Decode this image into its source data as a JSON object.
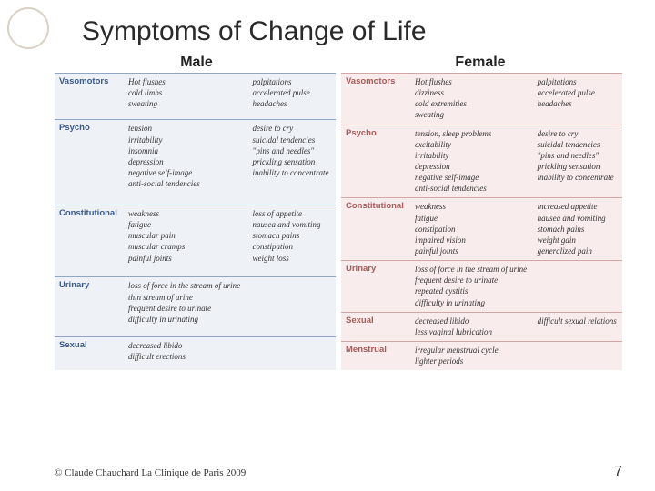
{
  "title": "Symptoms of Change of Life",
  "headers": {
    "male": "Male",
    "female": "Female"
  },
  "male": {
    "categories": [
      "Vasomotors",
      "Psycho",
      "Constitutional",
      "Urinary",
      "Sexual"
    ],
    "rows": [
      {
        "c1": [
          "Hot flushes",
          "cold limbs",
          "sweating"
        ],
        "c2": [
          "palpitations",
          "accelerated pulse",
          "headaches"
        ]
      },
      {
        "c1": [
          "tension",
          "irritability",
          "insomnia",
          "depression",
          "negative self-image",
          "anti-social tendencies"
        ],
        "c2": [
          "desire to cry",
          "suicidal tendencies",
          "\"pins and needles\"",
          "prickling sensation",
          "inability to concentrate"
        ]
      },
      {
        "c1": [
          "weakness",
          "fatigue",
          "muscular pain",
          "muscular cramps",
          "painful joints"
        ],
        "c2": [
          "loss of appetite",
          "nausea and vomiting",
          "stomach pains",
          "constipation",
          "weight loss"
        ]
      },
      {
        "c1": [
          "loss of force in the stream of urine",
          "thin stream of urine",
          "frequent desire to urinate",
          "difficulty in urinating"
        ],
        "c2": []
      },
      {
        "c1": [
          "decreased libido",
          "difficult erections"
        ],
        "c2": []
      }
    ]
  },
  "female": {
    "categories": [
      "Vasomotors",
      "Psycho",
      "Constitutional",
      "Urinary",
      "Sexual",
      "Menstrual"
    ],
    "rows": [
      {
        "c1": [
          "Hot flushes",
          "dizziness",
          "cold extremities",
          "sweating"
        ],
        "c2": [
          "palpitations",
          "accelerated pulse",
          "headaches"
        ]
      },
      {
        "c1": [
          "tension, sleep problems",
          "excitability",
          "irritability",
          "depression",
          "negative self-image",
          "anti-social tendencies"
        ],
        "c2": [
          "desire to cry",
          "suicidal tendencies",
          "\"pins and needles\"",
          "prickling sensation",
          "inability to concentrate"
        ]
      },
      {
        "c1": [
          "weakness",
          "fatigue",
          "constipation",
          "impaired vision",
          "painful joints"
        ],
        "c2": [
          "increased appetite",
          "nausea and vomiting",
          "stomach pains",
          "weight gain",
          "generalized pain"
        ]
      },
      {
        "c1": [
          "loss of force in the stream of urine",
          "frequent desire to urinate",
          "repeated cystitis",
          "difficulty in urinating"
        ],
        "c2": []
      },
      {
        "c1": [
          "decreased libido",
          "less vaginal lubrication"
        ],
        "c2": [
          "difficult sexual relations"
        ]
      },
      {
        "c1": [
          "irregular menstrual cycle",
          "lighter periods"
        ],
        "c2": []
      }
    ]
  },
  "footer": {
    "copyright": "© Claude Chauchard La Clinique de Paris 2009",
    "page": "7"
  },
  "colors": {
    "male_bg": "#eef2f7",
    "male_border": "#8fa6c4",
    "male_cat": "#3d5a8a",
    "female_bg": "#f9ecec",
    "female_border": "#d4a6a6",
    "female_cat": "#a85a5a"
  }
}
